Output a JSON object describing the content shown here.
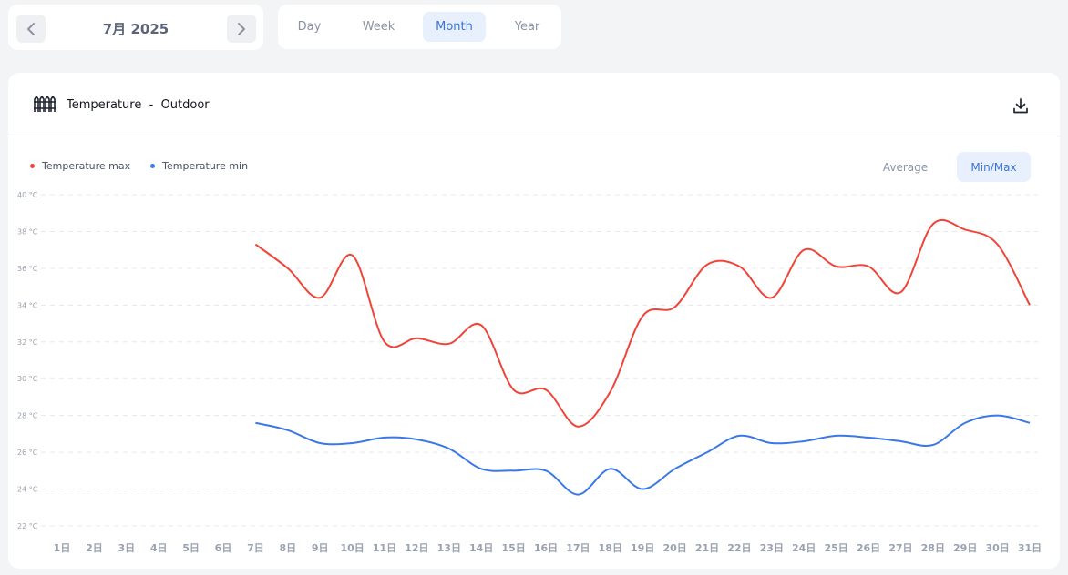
{
  "date_nav": {
    "label": "7月 2025"
  },
  "period_tabs": [
    "Day",
    "Week",
    "Month",
    "Year"
  ],
  "active_period": "Month",
  "card": {
    "icon": "fence-icon",
    "title": "Temperature  -  Outdoor",
    "download_icon": "download-icon"
  },
  "view_modes": [
    "Average",
    "Min/Max"
  ],
  "active_view_mode": "Min/Max",
  "colors": {
    "max": "#f04438",
    "min": "#3b78e7",
    "accent": "#3b74dd"
  },
  "chart_data": {
    "type": "line",
    "categories": [
      "1日",
      "2日",
      "3日",
      "4日",
      "5日",
      "6日",
      "7日",
      "8日",
      "9日",
      "10日",
      "11日",
      "12日",
      "13日",
      "14日",
      "15日",
      "16日",
      "17日",
      "18日",
      "19日",
      "20日",
      "21日",
      "22日",
      "23日",
      "24日",
      "25日",
      "26日",
      "27日",
      "28日",
      "29日",
      "30日",
      "31日"
    ],
    "y_ticks": [
      "22 °C",
      "24 °C",
      "26 °C",
      "28 °C",
      "30 °C",
      "32 °C",
      "34 °C",
      "36 °C",
      "38 °C",
      "40 °C"
    ],
    "ylim": [
      22,
      40
    ],
    "grid": true,
    "legend_position": "top-left",
    "series": [
      {
        "name": "Temperature max",
        "color": "#f04438",
        "values": [
          null,
          null,
          null,
          null,
          null,
          null,
          37.3,
          36.0,
          34.4,
          36.7,
          32.0,
          32.2,
          31.9,
          32.9,
          29.4,
          29.4,
          27.4,
          29.3,
          33.4,
          33.9,
          36.2,
          36.1,
          34.4,
          37.0,
          36.1,
          36.1,
          34.7,
          38.4,
          38.1,
          37.3,
          34.0
        ]
      },
      {
        "name": "Temperature min",
        "color": "#3b78e7",
        "values": [
          null,
          null,
          null,
          null,
          null,
          null,
          27.6,
          27.2,
          26.5,
          26.5,
          26.8,
          26.7,
          26.2,
          25.1,
          25.0,
          25.0,
          23.7,
          25.1,
          24.0,
          25.1,
          26.0,
          26.9,
          26.5,
          26.6,
          26.9,
          26.8,
          26.6,
          26.4,
          27.6,
          28.0,
          27.6
        ]
      }
    ]
  }
}
